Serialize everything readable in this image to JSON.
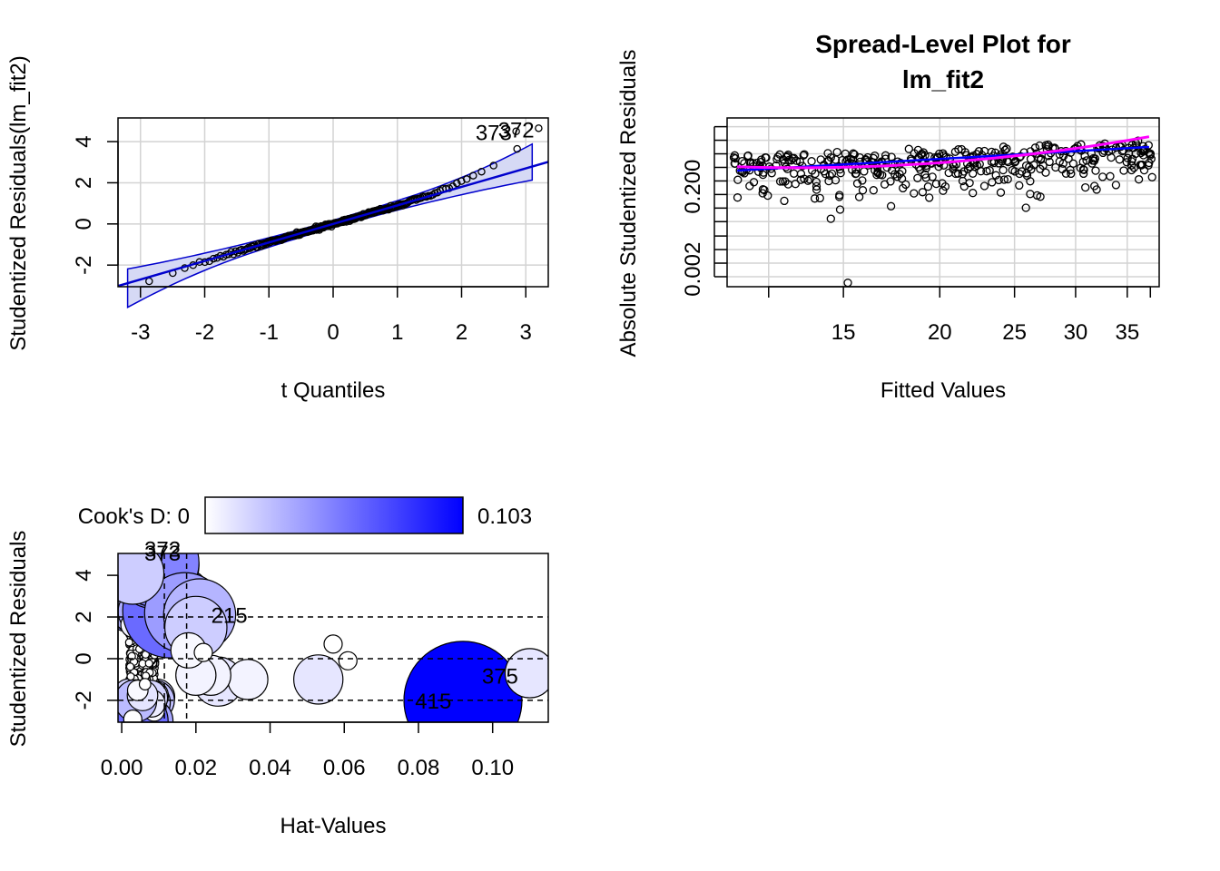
{
  "chart_data": [
    {
      "type": "scatter",
      "subtype": "qq-plot",
      "xlabel": "t Quantiles",
      "ylabel": "Studentized Residuals(lm_fit2)",
      "xlim": [
        -3.35,
        3.35
      ],
      "ylim": [
        -3.05,
        5.15
      ],
      "x_ticks": [
        -3,
        -2,
        -1,
        0,
        1,
        2,
        3
      ],
      "y_ticks": [
        -2,
        0,
        2,
        4
      ],
      "x_tick_labels": [
        "-3",
        "-2",
        "-1",
        "0",
        "1",
        "2",
        "3"
      ],
      "y_tick_labels": [
        "-2",
        "0",
        "2",
        "4"
      ],
      "grid": true,
      "reference_line": {
        "slope": 0.9,
        "intercept": 0.0
      },
      "envelope_band": true,
      "labeled_points": [
        {
          "label": "373",
          "x": 2.5,
          "y": 4.5
        },
        {
          "label": "372",
          "x": 2.85,
          "y": 4.65
        }
      ],
      "colors": {
        "line": "#0000cd",
        "band": "#d6d9f5",
        "points": "#000000"
      }
    },
    {
      "type": "scatter",
      "subtype": "spread-level",
      "title": "Spread-Level Plot for lm_fit2",
      "title_lines": [
        "Spread-Level Plot for",
        "lm_fit2"
      ],
      "xlabel": "Fitted Values",
      "ylabel": "Absolute Studentized Residuals",
      "x_scale": "log",
      "y_scale": "log",
      "x_ticks": [
        15,
        20,
        25,
        30,
        35
      ],
      "x_tick_labels": [
        "15",
        "20",
        "25",
        "30",
        "35"
      ],
      "y_tick_labels_shown": [
        "0.002",
        "0.200"
      ],
      "grid": true,
      "fit_lines": [
        {
          "kind": "linear",
          "color": "#0000ff"
        },
        {
          "kind": "smooth",
          "color": "#ff00ff"
        }
      ]
    },
    {
      "type": "scatter",
      "subtype": "influence-plot",
      "xlabel": "Hat-Values",
      "ylabel": "Studentized Residuals",
      "xlim": [
        -0.001,
        0.115
      ],
      "ylim": [
        -3.05,
        5.05
      ],
      "x_ticks": [
        0.0,
        0.02,
        0.04,
        0.06,
        0.08,
        0.1
      ],
      "x_tick_labels": [
        "0.00",
        "0.02",
        "0.04",
        "0.06",
        "0.08",
        "0.10"
      ],
      "y_ticks": [
        -2,
        0,
        2,
        4
      ],
      "y_tick_labels": [
        "-2",
        "0",
        "2",
        "4"
      ],
      "reference_lines_y": [
        -2,
        0,
        2
      ],
      "reference_lines_x": [
        0.0115,
        0.0175
      ],
      "legend": {
        "label": "Cook's D: 0",
        "max_label": "0.103",
        "min": 0,
        "max": 0.103,
        "placement": "top"
      },
      "labeled_points": [
        {
          "label": "373",
          "x": 0.009,
          "y": 4.5,
          "cooks_d": 0.05
        },
        {
          "label": "372",
          "x": 0.009,
          "y": 4.6,
          "cooks_d": 0.05
        },
        {
          "label": "215",
          "x": 0.021,
          "y": 2.1,
          "cooks_d": 0.03
        },
        {
          "label": "375",
          "x": 0.11,
          "y": -0.7,
          "cooks_d": 0.01
        },
        {
          "label": "415",
          "x": 0.092,
          "y": -2.0,
          "cooks_d": 0.103
        }
      ],
      "other_points": [
        {
          "x": 0.057,
          "y": 0.7,
          "cooks_d": 0.0
        },
        {
          "x": 0.053,
          "y": -1.0,
          "cooks_d": 0.01
        },
        {
          "x": 0.034,
          "y": -1.0,
          "cooks_d": 0.005
        },
        {
          "x": 0.026,
          "y": -1.1,
          "cooks_d": 0.01
        },
        {
          "x": 0.024,
          "y": -0.8,
          "cooks_d": 0.005
        },
        {
          "x": 0.02,
          "y": -0.8,
          "cooks_d": 0.005
        },
        {
          "x": 0.018,
          "y": 0.4,
          "cooks_d": 0.003
        },
        {
          "x": 0.02,
          "y": 1.5,
          "cooks_d": 0.02
        },
        {
          "x": 0.017,
          "y": 2.2,
          "cooks_d": 0.04
        },
        {
          "x": 0.013,
          "y": 2.3,
          "cooks_d": 0.06
        },
        {
          "x": 0.003,
          "y": 4.1,
          "cooks_d": 0.02
        },
        {
          "x": 0.003,
          "y": -2.9,
          "cooks_d": 0.0
        },
        {
          "x": 0.022,
          "y": 0.3,
          "cooks_d": 0.0
        },
        {
          "x": 0.061,
          "y": -0.1,
          "cooks_d": 0.0
        }
      ]
    }
  ]
}
